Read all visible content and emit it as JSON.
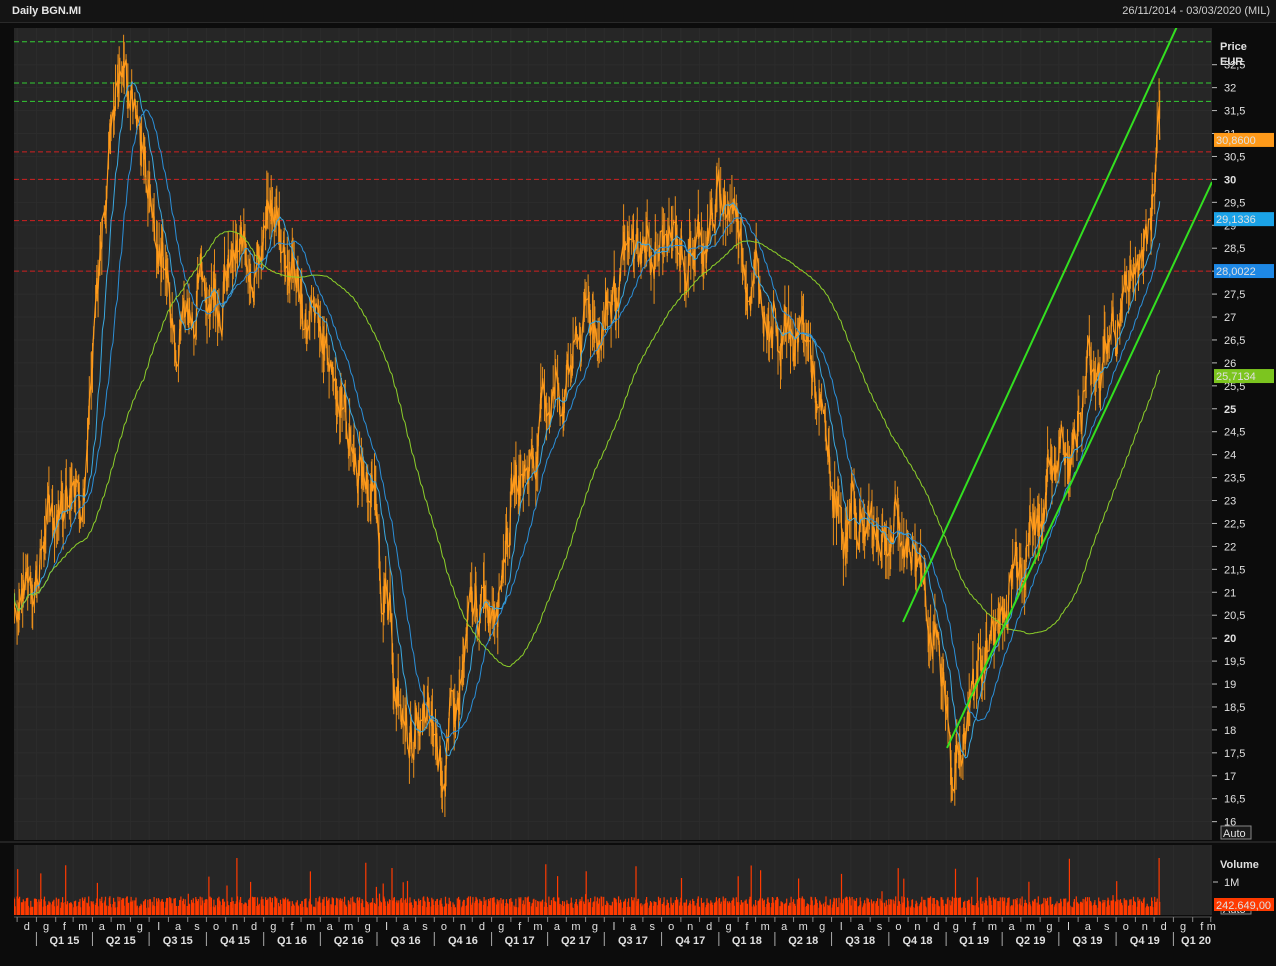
{
  "header": {
    "title": "Daily BGN.MI",
    "date_range": "26/11/2014 - 03/03/2020 (MIL)"
  },
  "price_panel": {
    "axis_title_1": "Price",
    "axis_title_2": "EUR",
    "tick_labels": [
      "16",
      "16,5",
      "17",
      "17,5",
      "18",
      "18,5",
      "19",
      "19,5",
      "20",
      "20,5",
      "21",
      "21,5",
      "22",
      "22,5",
      "23",
      "23,5",
      "24",
      "24,5",
      "25",
      "25,5",
      "26",
      "26,5",
      "27",
      "27,5",
      "28",
      "28,5",
      "29",
      "29,5",
      "30",
      "30,5",
      "31",
      "31,5",
      "32",
      "32,5"
    ],
    "auto_button": "Auto",
    "last_price_label": "30,8600",
    "ma1_label": "29,1336",
    "ma2_label": "28,0022",
    "ma3_label": "25,7134"
  },
  "volume_panel": {
    "axis_title": "Volume",
    "tick_label": "1M",
    "last_value_label": "242.649,00",
    "auto_button": "Auto"
  },
  "x_axis": {
    "month_letters": [
      "d",
      "g",
      "f",
      "m",
      "a",
      "m",
      "g",
      "l",
      "a",
      "s",
      "o",
      "n",
      "d",
      "g",
      "f",
      "m",
      "a",
      "m",
      "g",
      "l",
      "a",
      "s",
      "o",
      "n",
      "d",
      "g",
      "f",
      "m",
      "a",
      "m",
      "g",
      "l",
      "a",
      "s",
      "o",
      "n",
      "d",
      "g",
      "f",
      "m",
      "a",
      "m",
      "g",
      "l",
      "a",
      "s",
      "o",
      "n",
      "d",
      "g",
      "f",
      "m",
      "a",
      "m",
      "g",
      "l",
      "a",
      "s",
      "o",
      "n",
      "d",
      "g",
      "f",
      "m",
      "a",
      "m",
      "g",
      "l",
      "a",
      "s",
      "o",
      "n",
      "d",
      "g",
      "f",
      "m"
    ],
    "quarters": [
      "Q1 15",
      "Q2 15",
      "Q3 15",
      "Q4 15",
      "Q1 16",
      "Q2 16",
      "Q3 16",
      "Q4 16",
      "Q1 17",
      "Q2 17",
      "Q3 17",
      "Q4 17",
      "Q1 18",
      "Q2 18",
      "Q3 18",
      "Q4 18",
      "Q1 19",
      "Q2 19",
      "Q3 19",
      "Q4 19",
      "Q1 20"
    ]
  },
  "colors": {
    "price": "#ff9a1a",
    "ma_short": "#3aa8e0",
    "ma_mid": "#2b8fd8",
    "ma_long": "#8ccf2a",
    "trend_channel": "#33e020",
    "resistance": "#33cc33",
    "support": "#d02020",
    "volume": "#ff3a00",
    "grid": "#2c2c2c"
  },
  "chart_data": {
    "type": "line",
    "x": [
      "2014-12",
      "2015-03",
      "2015-05",
      "2015-08",
      "2015-11",
      "2016-01",
      "2016-04",
      "2016-06",
      "2016-08",
      "2016-10",
      "2016-12",
      "2017-02",
      "2017-04",
      "2017-06",
      "2017-09",
      "2017-11",
      "2018-01",
      "2018-03",
      "2018-05",
      "2018-07",
      "2018-09",
      "2018-11",
      "2019-01",
      "2019-03",
      "2019-05",
      "2019-07",
      "2019-09",
      "2019-11",
      "2019-12"
    ],
    "series": [
      {
        "name": "BGN.MI",
        "values": [
          21.0,
          24.0,
          32.5,
          27.5,
          28.0,
          29.0,
          26.0,
          23.5,
          18.0,
          17.5,
          20.5,
          23.5,
          25.5,
          27.0,
          28.5,
          28.5,
          29.5,
          27.5,
          26.5,
          22.5,
          22.5,
          22.0,
          17.5,
          20.0,
          22.5,
          24.5,
          26.5,
          28.5,
          30.86
        ]
      }
    ],
    "moving_average_last": {
      "ma_short": 29.1336,
      "ma_mid": 28.0022,
      "ma_long": 25.7134
    },
    "horizontal_levels_green": [
      33.0,
      32.1,
      31.7
    ],
    "horizontal_levels_red": [
      30.6,
      30.0,
      29.1,
      28.0
    ],
    "ylim": [
      15.6,
      33.3
    ],
    "volume_ylim": [
      0,
      1500000
    ],
    "volume_last": 242649
  }
}
